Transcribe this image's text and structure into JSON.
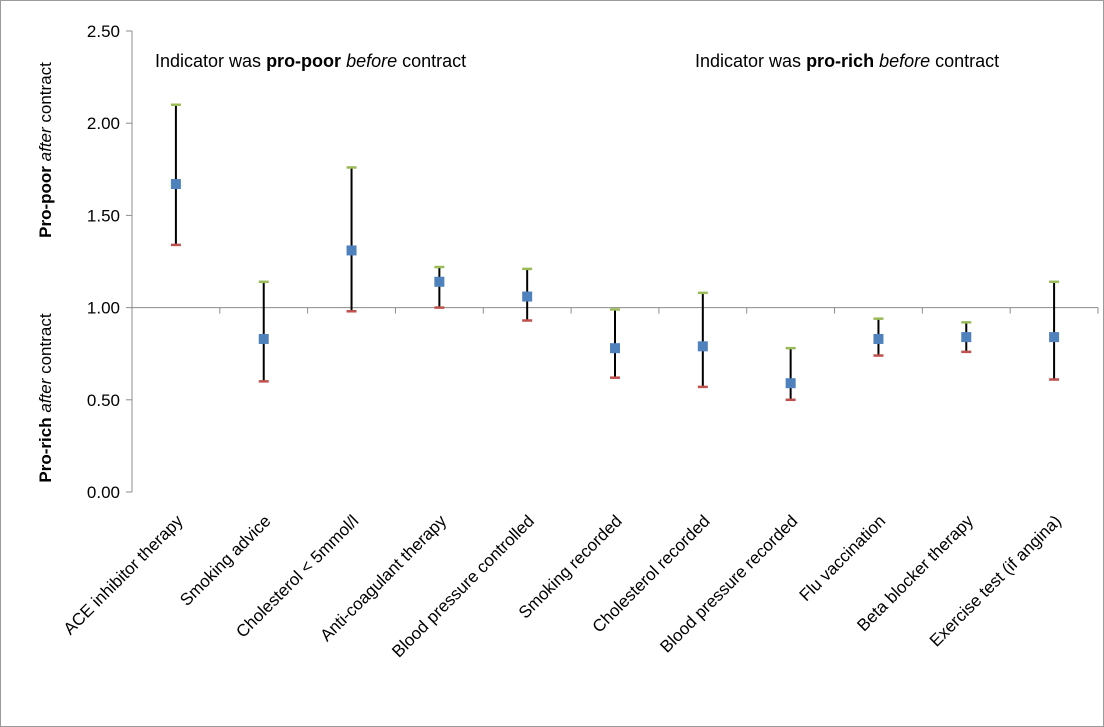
{
  "chart_data": {
    "type": "scatter",
    "annotations": {
      "left": {
        "p1": "Indicator was ",
        "p2": "pro-poor",
        "p3": " ",
        "p4": "before",
        "p5": " contract"
      },
      "right": {
        "p1": "Indicator was ",
        "p2": "pro-rich",
        "p3": " ",
        "p4": "before",
        "p5": " contract"
      }
    },
    "ylabel_upper": {
      "p1": "Pro-poor",
      "p2": " ",
      "p3": "after",
      "p4": " contract"
    },
    "ylabel_lower": {
      "p1": "Pro-rich",
      "p2": " ",
      "p3": "after",
      "p4": " contract"
    },
    "ylim": [
      0,
      2.5
    ],
    "reference_line": 1.0,
    "yticks": [
      "0.00",
      "0.50",
      "1.00",
      "1.50",
      "2.00",
      "2.50"
    ],
    "ytick_values": [
      0,
      0.5,
      1.0,
      1.5,
      2.0,
      2.5
    ],
    "categories": [
      "ACE inhibitor therapy",
      "Smoking advice",
      "Cholesterol < 5mmol/l",
      "Anti-coagulant therapy",
      "Blood pressure  controlled",
      "Smoking recorded",
      "Cholesterol  recorded",
      "Blood pressure  recorded",
      "Flu vaccination",
      "Beta blocker therapy",
      "Exercise test (if angina)"
    ],
    "values": [
      1.67,
      0.83,
      1.31,
      1.14,
      1.06,
      0.78,
      0.79,
      0.59,
      0.83,
      0.84,
      0.84
    ],
    "upper": [
      2.1,
      1.14,
      1.76,
      1.22,
      1.21,
      0.99,
      1.08,
      0.78,
      0.94,
      0.92,
      1.14
    ],
    "lower": [
      1.34,
      0.6,
      0.98,
      1.0,
      0.93,
      0.62,
      0.57,
      0.5,
      0.74,
      0.76,
      0.61
    ],
    "grid": false,
    "legend": "none",
    "colors": {
      "point": "#4f81bd",
      "upper_cap": "#9bbb59",
      "lower_cap": "#c0504d",
      "error_bar": "#000000"
    }
  }
}
